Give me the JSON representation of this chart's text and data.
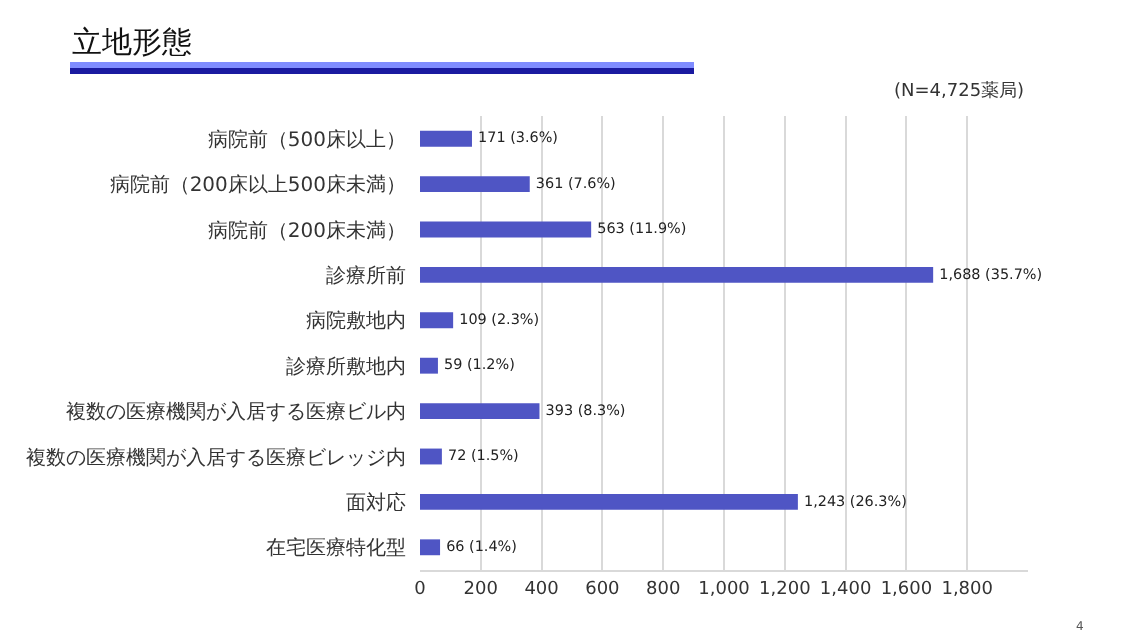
{
  "chart_data": {
    "type": "bar",
    "orientation": "horizontal",
    "title": "立地形態",
    "categories": [
      "病院前（500床以上）",
      "病院前（200床以上500床未満）",
      "病院前（200床未満）",
      "診療所前",
      "病院敷地内",
      "診療所敷地内",
      "複数の医療機関が入居する医療ビル内",
      "複数の医療機関が入居する医療ビレッジ内",
      "面対応",
      "在宅医療特化型"
    ],
    "values": [
      171,
      361,
      563,
      1688,
      109,
      59,
      393,
      72,
      1243,
      66
    ],
    "value_labels": [
      "171 (3.6%)",
      "361 (7.6%)",
      "563 (11.9%)",
      "1,688 (35.7%)",
      "109 (2.3%)",
      "59 (1.2%)",
      "393 (8.3%)",
      "72 (1.5%)",
      "1,243 (26.3%)",
      "66 (1.4%)"
    ],
    "color": "#4f55c4",
    "xlim": [
      0,
      2000
    ],
    "xticks": [
      0,
      200,
      400,
      {
        "value": 600,
        "label": "600"
      },
      800,
      {
        "value": 1000,
        "label": "1,000"
      },
      {
        "value": 1200,
        "label": "1,200"
      },
      {
        "value": 1400,
        "label": "1,400"
      },
      {
        "value": 1600,
        "label": "1,600"
      },
      {
        "value": 1800,
        "label": "1,800"
      }
    ],
    "grid": "x",
    "annotations": [
      "(N=4,725薬局)",
      "4"
    ]
  }
}
